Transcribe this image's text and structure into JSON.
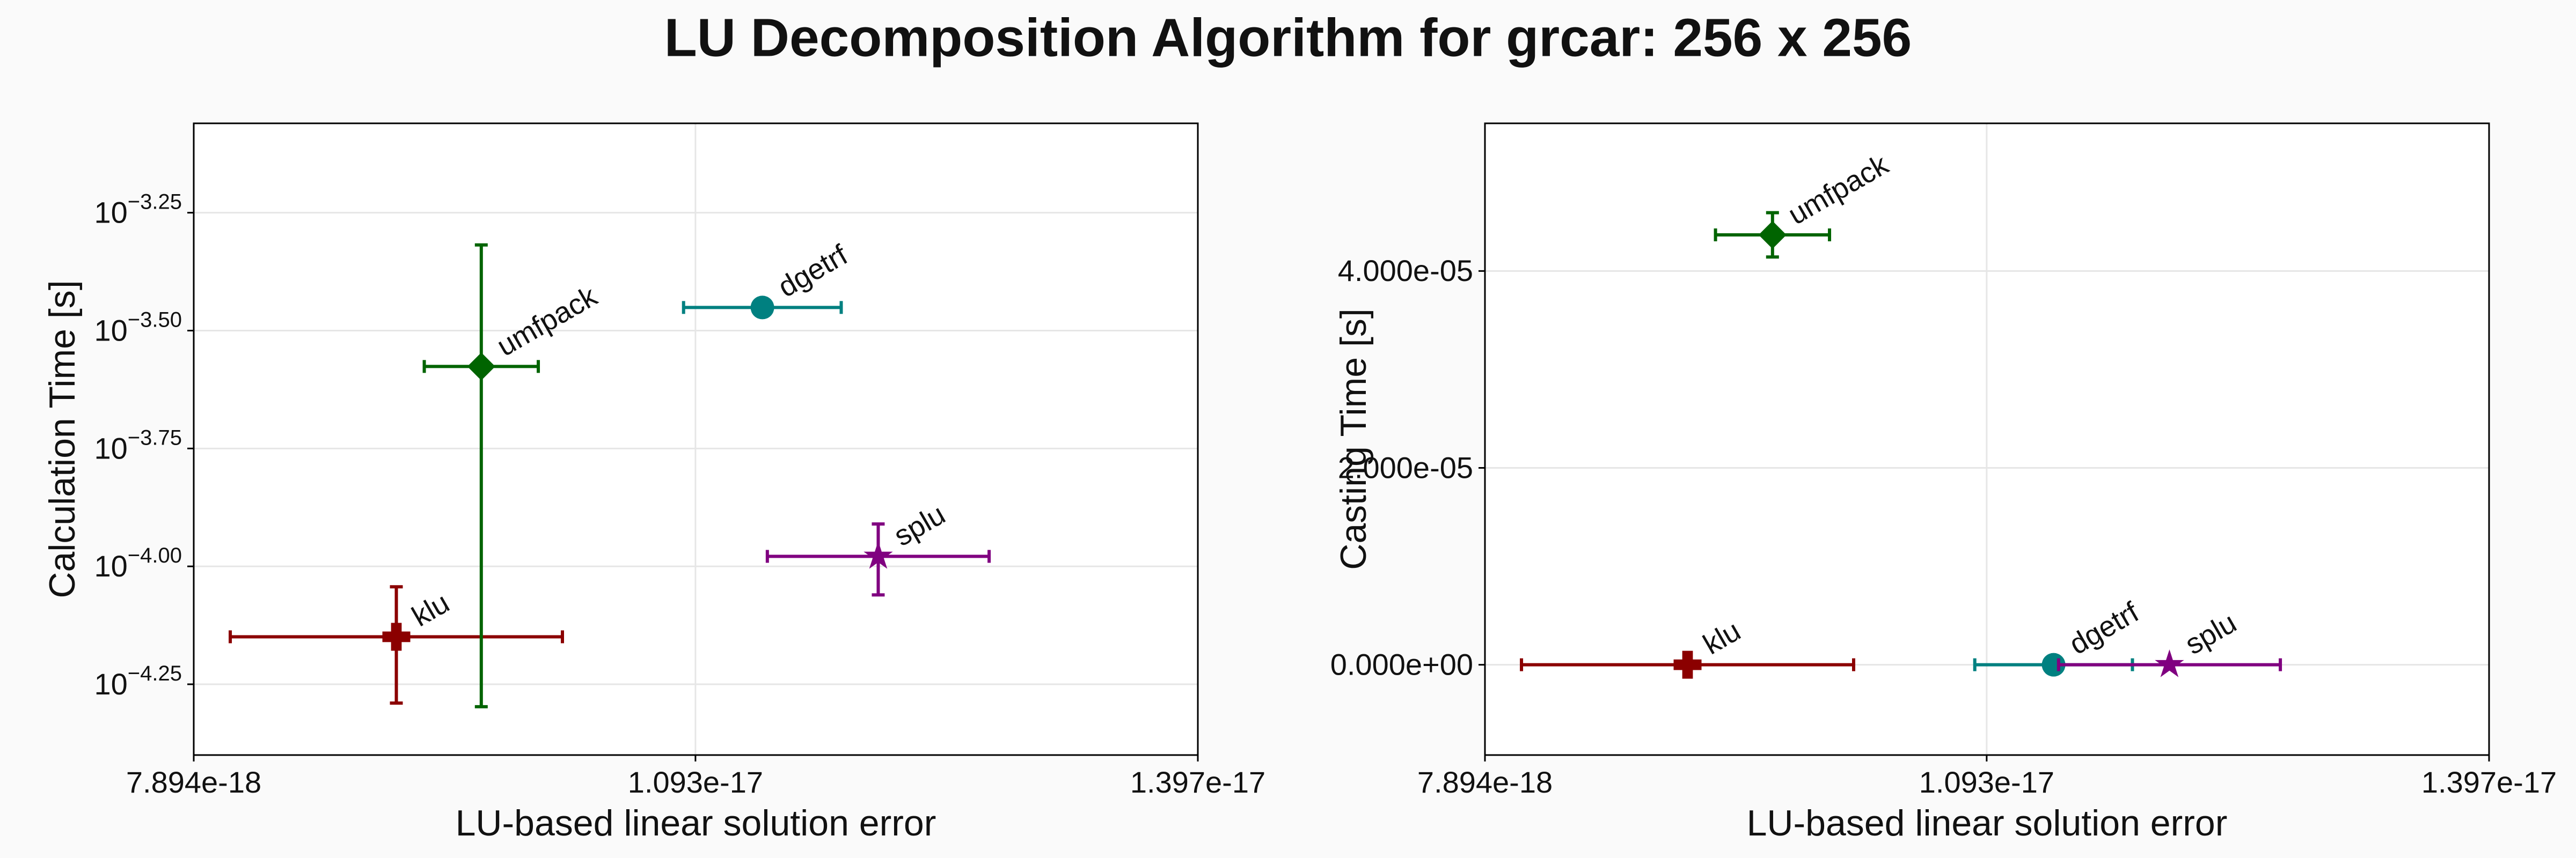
{
  "title": "LU Decomposition Algorithm for grcar: 256 x 256",
  "chart_data": [
    {
      "type": "scatter",
      "xlabel": "LU-based linear solution error",
      "ylabel": "Calculation Time [s]",
      "log_y": true,
      "grid": true,
      "xlim": [
        7.894e-18,
        1.397e-17
      ],
      "xticks": [
        7.894e-18,
        1.093e-17,
        1.397e-17
      ],
      "ylim": [
        3.98e-05,
        0.00087
      ],
      "yticks": [
        {
          "value": 0.000562341,
          "label": "10−3.25"
        },
        {
          "value": 0.000316228,
          "label": "10−3.50"
        },
        {
          "value": 0.000177828,
          "label": "10−3.75"
        },
        {
          "value": 0.0001,
          "label": "10−4.00"
        },
        {
          "value": 5.62341e-05,
          "label": "10−4.25"
        }
      ],
      "series": [
        {
          "name": "klu",
          "color": "#8b0000",
          "marker": "plus",
          "x": [
            9.12e-18
          ],
          "values": [
            7.09e-05
          ],
          "xerr": [
            1.005e-18
          ],
          "yerr": [
            1.96e-05
          ]
        },
        {
          "name": "umfpack",
          "color": "#006400",
          "marker": "diamond",
          "x": [
            9.634e-18
          ],
          "values": [
            0.0002654
          ],
          "xerr": [
            3.45e-19
          ],
          "yerr": [
            0.000215
          ]
        },
        {
          "name": "dgetrf",
          "color": "#008080",
          "marker": "circle",
          "x": [
            1.1335e-17
          ],
          "values": [
            0.000354
          ],
          "xerr": [
            4.77e-19
          ],
          "yerr": [
            0
          ]
        },
        {
          "name": "splu",
          "color": "#800080",
          "marker": "star",
          "x": [
            1.2036e-17
          ],
          "values": [
            0.000105
          ],
          "xerr": [
            6.71e-19
          ],
          "yerr": [
            1.8e-05
          ]
        }
      ]
    },
    {
      "type": "scatter",
      "xlabel": "LU-based linear solution error",
      "ylabel": "Casting Time [s]",
      "log_y": false,
      "grid": true,
      "xlim": [
        7.894e-18,
        1.397e-17
      ],
      "xticks": [
        7.894e-18,
        1.093e-17,
        1.397e-17
      ],
      "ylim": [
        -9.17e-06,
        5.5e-05
      ],
      "yticks": [
        {
          "value": 0,
          "label": "0.000e+00"
        },
        {
          "value": 2e-05,
          "label": "2.000e-05"
        },
        {
          "value": 4e-05,
          "label": "4.000e-05"
        }
      ],
      "series": [
        {
          "name": "klu",
          "color": "#8b0000",
          "marker": "plus",
          "x": [
            9.12e-18
          ],
          "values": [
            0
          ],
          "xerr": [
            1.005e-18
          ],
          "yerr": [
            0
          ]
        },
        {
          "name": "umfpack",
          "color": "#006400",
          "marker": "diamond",
          "x": [
            9.634e-18
          ],
          "values": [
            4.367e-05
          ],
          "xerr": [
            3.45e-19
          ],
          "yerr": [
            2.25e-06
          ]
        },
        {
          "name": "dgetrf",
          "color": "#008080",
          "marker": "circle",
          "x": [
            1.1335e-17
          ],
          "values": [
            0
          ],
          "xerr": [
            4.77e-19
          ],
          "yerr": [
            0
          ]
        },
        {
          "name": "splu",
          "color": "#800080",
          "marker": "star",
          "x": [
            1.2036e-17
          ],
          "values": [
            0
          ],
          "xerr": [
            6.71e-19
          ],
          "yerr": [
            0
          ]
        }
      ]
    }
  ]
}
